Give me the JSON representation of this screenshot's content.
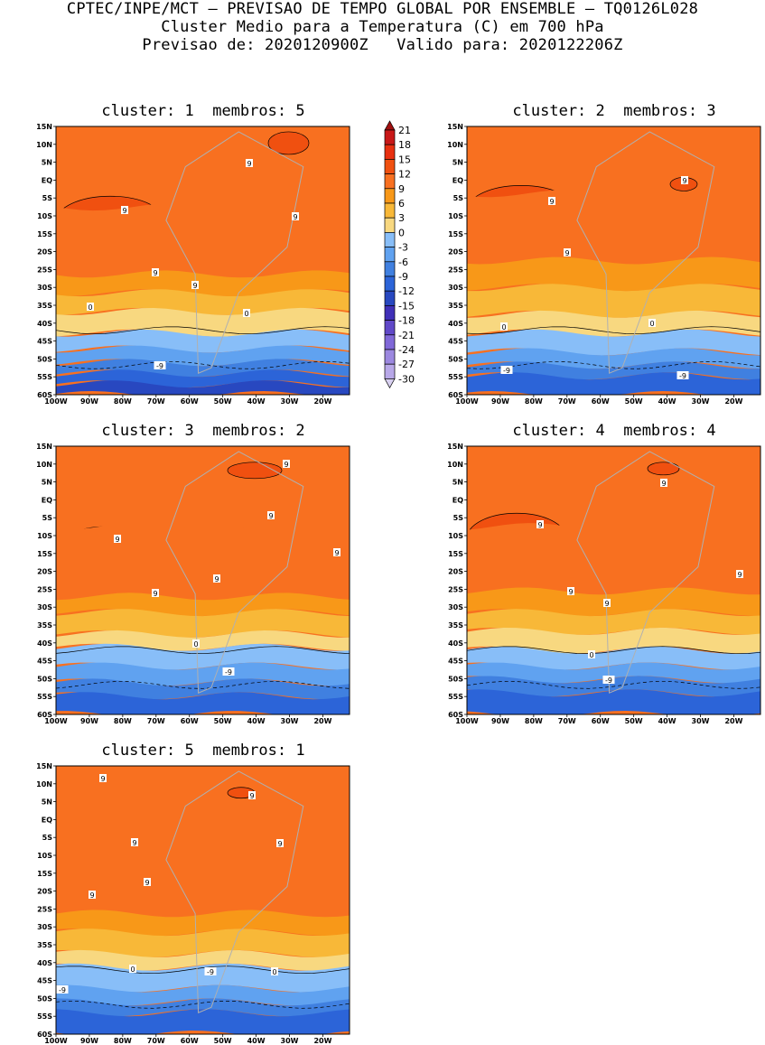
{
  "header": {
    "line1": "CPTEC/INPE/MCT – PREVISAO DE TEMPO GLOBAL POR ENSEMBLE – TQ0126L028",
    "line2": "Cluster Medio para a Temperatura (C) em 700 hPa",
    "line3": "Previsao de: 2020120900Z   Valido para: 2020122206Z"
  },
  "panels": [
    {
      "title": "cluster: 1  membros: 5",
      "labels": [
        [
          "9",
          138,
          233
        ],
        [
          "9",
          172,
          302
        ],
        [
          "9",
          216,
          316
        ],
        [
          "0",
          100,
          340
        ],
        [
          "0",
          273,
          347
        ],
        [
          "-9",
          177,
          405
        ],
        [
          "9",
          276,
          181
        ],
        [
          "9",
          327,
          240
        ]
      ]
    },
    {
      "title": "cluster: 2  membros: 3",
      "labels": [
        [
          "9",
          611,
          223
        ],
        [
          "9",
          628,
          280
        ],
        [
          "9",
          758,
          200
        ],
        [
          "0",
          558,
          362
        ],
        [
          "0",
          722,
          358
        ],
        [
          "-9",
          561,
          410
        ],
        [
          "-9",
          756,
          416
        ]
      ]
    },
    {
      "title": "cluster: 3  membros: 2",
      "labels": [
        [
          "9",
          130,
          597
        ],
        [
          "9",
          172,
          657
        ],
        [
          "9",
          240,
          641
        ],
        [
          "9",
          300,
          571
        ],
        [
          "9",
          317,
          514
        ],
        [
          "9",
          373,
          612
        ],
        [
          "0",
          217,
          713
        ],
        [
          "-9",
          253,
          744
        ]
      ]
    },
    {
      "title": "cluster: 4  membros: 4",
      "labels": [
        [
          "9",
          598,
          581
        ],
        [
          "9",
          632,
          655
        ],
        [
          "9",
          672,
          668
        ],
        [
          "9",
          735,
          535
        ],
        [
          "9",
          819,
          636
        ],
        [
          "0",
          655,
          725
        ],
        [
          "-9",
          674,
          753
        ]
      ]
    },
    {
      "title": "cluster: 5  membros: 1",
      "labels": [
        [
          "9",
          114,
          862
        ],
        [
          "9",
          149,
          933
        ],
        [
          "9",
          163,
          977
        ],
        [
          "9",
          102,
          991
        ],
        [
          "9",
          279,
          881
        ],
        [
          "9",
          310,
          934
        ],
        [
          "0",
          147,
          1073
        ],
        [
          "0",
          304,
          1076
        ],
        [
          "-9",
          233,
          1076
        ],
        [
          "-9",
          69,
          1096
        ]
      ]
    }
  ],
  "axes": {
    "lat_ticks": [
      "15N",
      "10N",
      "5N",
      "EQ",
      "5S",
      "10S",
      "15S",
      "20S",
      "25S",
      "30S",
      "35S",
      "40S",
      "45S",
      "50S",
      "55S",
      "60S"
    ],
    "lon_ticks": [
      "100W",
      "90W",
      "80W",
      "70W",
      "60W",
      "50W",
      "40W",
      "30W",
      "20W"
    ]
  },
  "colorbar": {
    "levels": [
      "21",
      "18",
      "15",
      "12",
      "9",
      "6",
      "3",
      "0",
      "-3",
      "-6",
      "-9",
      "-12",
      "-15",
      "-18",
      "-21",
      "-24",
      "-27",
      "-30"
    ],
    "colors": [
      "#a01010",
      "#c81818",
      "#e83010",
      "#f05010",
      "#f87020",
      "#f89818",
      "#f8b838",
      "#f8d880",
      "#88bef8",
      "#60a2f0",
      "#4080e0",
      "#2c64d8",
      "#2848c0",
      "#4030b8",
      "#6048c8",
      "#8068d8",
      "#9c88e0",
      "#b8a8e8",
      "#d8d0f0"
    ]
  }
}
